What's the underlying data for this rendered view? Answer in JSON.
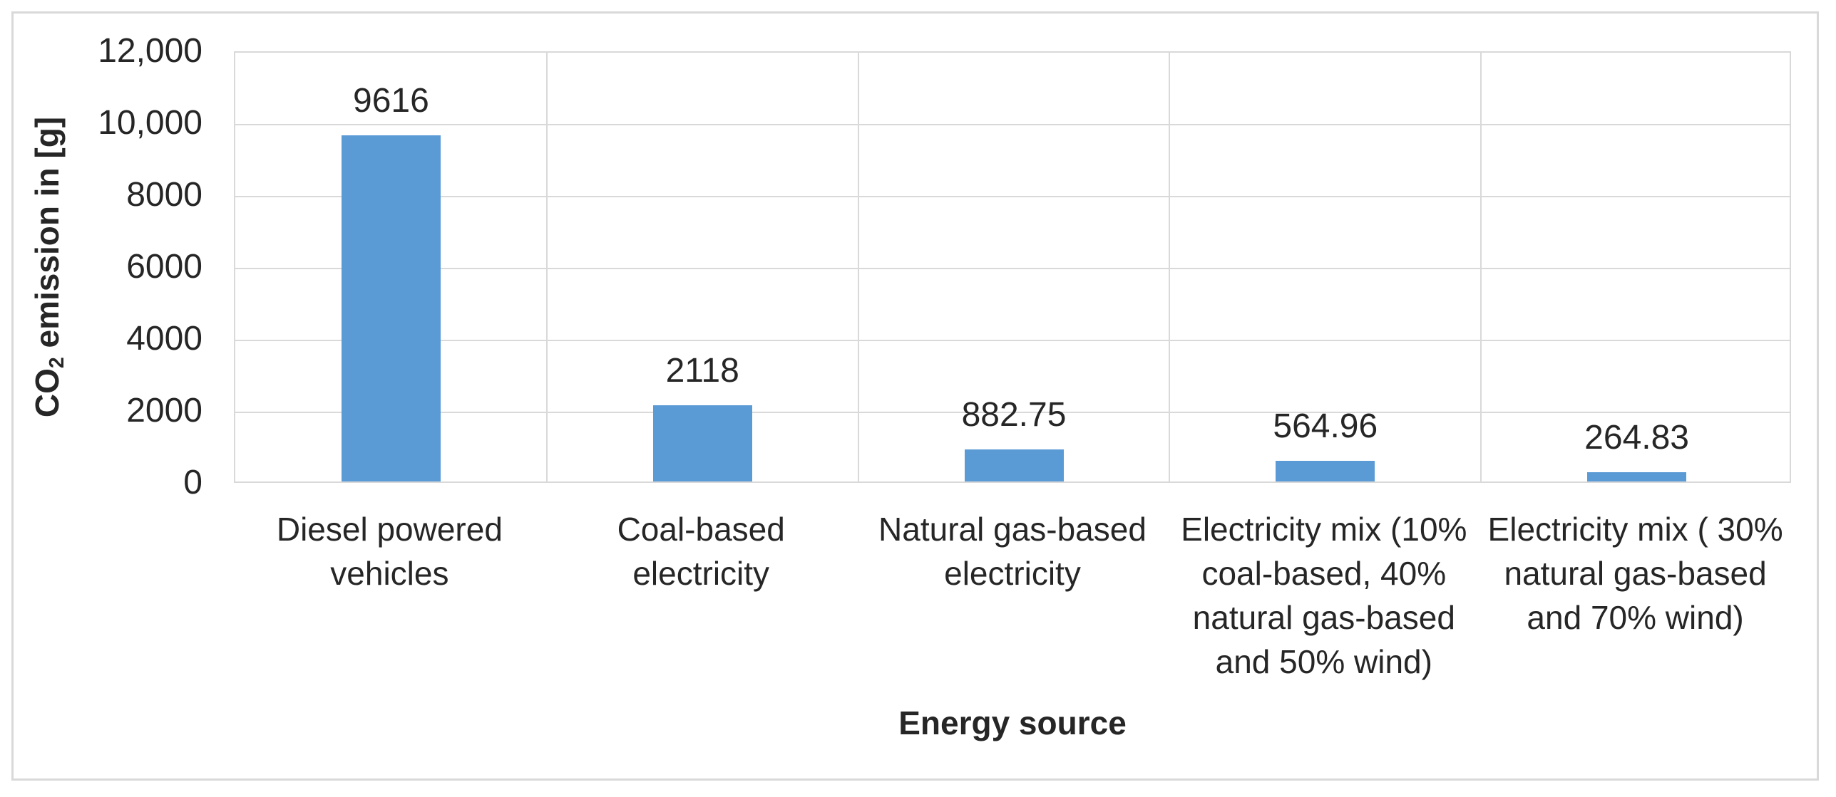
{
  "chart_data": {
    "type": "bar",
    "title": "",
    "categories": [
      "Diesel powered vehicles",
      "Coal-based electricity",
      "Natural gas-based electricity",
      "Electricity mix (10% coal-based, 40% natural gas-based and 50% wind)",
      "Electricity mix ( 30% natural gas-based and 70% wind)"
    ],
    "values": [
      9616,
      2118,
      882.75,
      564.96,
      264.83
    ],
    "value_labels": [
      "9616",
      "2118",
      "882.75",
      "564.96",
      "264.83"
    ],
    "xlabel": "Energy source",
    "ylabel": {
      "prefix": "CO",
      "subscript": "2",
      "suffix": " emission in [g]"
    },
    "ylim": [
      0,
      12000
    ],
    "yticks": [
      {
        "value": 0,
        "label": "0"
      },
      {
        "value": 2000,
        "label": "2000"
      },
      {
        "value": 4000,
        "label": "4000"
      },
      {
        "value": 6000,
        "label": "6000"
      },
      {
        "value": 8000,
        "label": "8000"
      },
      {
        "value": 10000,
        "label": "10,000"
      },
      {
        "value": 12000,
        "label": "12,000"
      }
    ],
    "grid": true,
    "legend": "none",
    "colors": {
      "bar": "#5B9BD5",
      "gridline": "#D9D9D9",
      "frame_border": "#D9D9D9",
      "text": "#262626",
      "background": "#FFFFFF"
    }
  }
}
